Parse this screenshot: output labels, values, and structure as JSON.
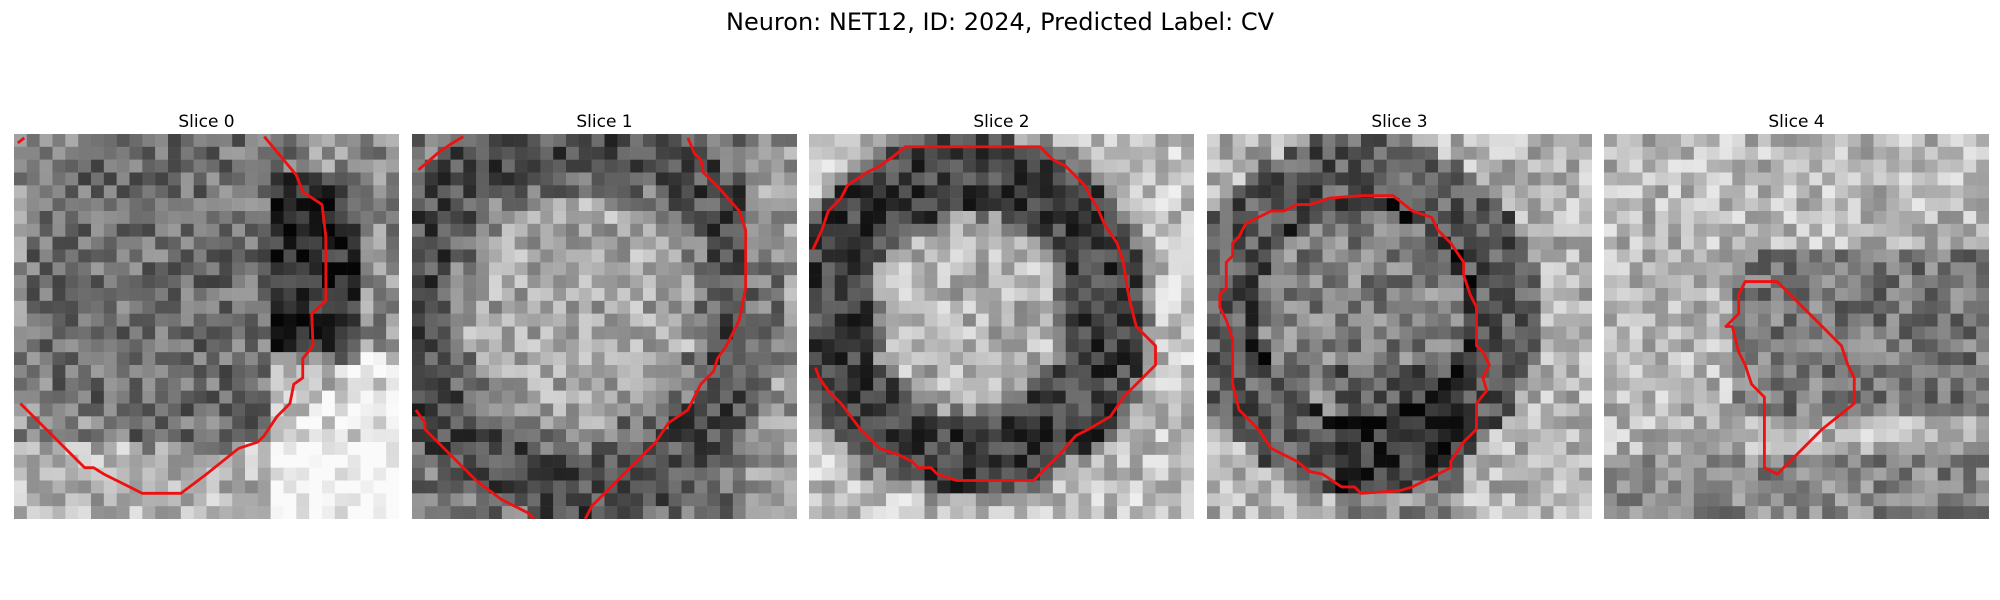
{
  "figure": {
    "title": "Neuron: NET12, ID: 2024, Predicted Label: CV"
  },
  "panels": [
    {
      "title": "Slice 0"
    },
    {
      "title": "Slice 1"
    },
    {
      "title": "Slice 2"
    },
    {
      "title": "Slice 3"
    },
    {
      "title": "Slice 4"
    }
  ],
  "colors": {
    "contour": "#ee1111",
    "background": "#ffffff"
  }
}
